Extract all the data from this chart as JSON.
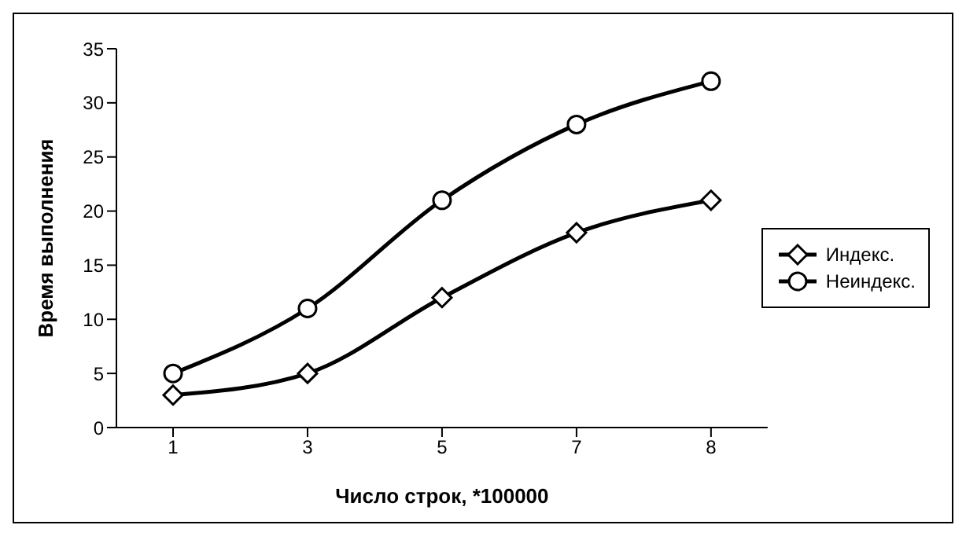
{
  "chart_data": {
    "type": "line",
    "xlabel": "Число строк, *100000",
    "ylabel": "Время выполнения",
    "categories": [
      "1",
      "3",
      "5",
      "7",
      "8"
    ],
    "ylim": [
      0,
      35
    ],
    "yticks": [
      0,
      5,
      10,
      15,
      20,
      25,
      30,
      35
    ],
    "grid": false,
    "legend": "right",
    "series": [
      {
        "name": "Индекс.",
        "color": "#000000",
        "marker": "diamond",
        "values": [
          3,
          5,
          12,
          18,
          21
        ]
      },
      {
        "name": "Неиндекс.",
        "color": "#000000",
        "marker": "circle",
        "values": [
          5,
          11,
          21,
          28,
          32
        ]
      }
    ]
  }
}
